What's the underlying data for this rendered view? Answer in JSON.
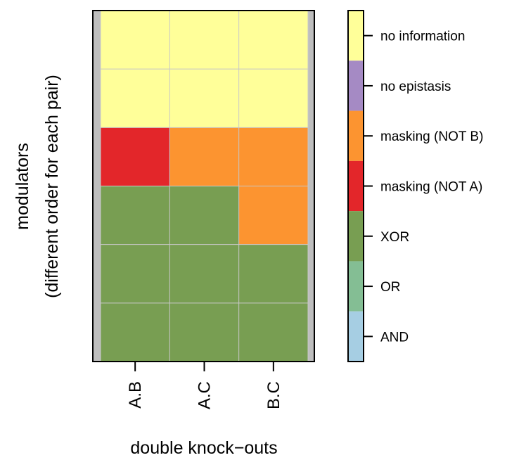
{
  "chart_data": {
    "type": "heatmap",
    "title": "",
    "xlabel": "double knock−outs",
    "ylabel_lines": [
      "modulators",
      "(different order for each pair)"
    ],
    "categories": [
      "A.B",
      "A.C",
      "B.C"
    ],
    "rows_top_to_bottom": [
      [
        "no information",
        "no information",
        "no information"
      ],
      [
        "no information",
        "no information",
        "no information"
      ],
      [
        "masking (NOT A)",
        "masking (NOT B)",
        "masking (NOT B)"
      ],
      [
        "XOR",
        "XOR",
        "masking (NOT B)"
      ],
      [
        "XOR",
        "XOR",
        "XOR"
      ],
      [
        "XOR",
        "XOR",
        "XOR"
      ]
    ],
    "legend": {
      "placement": "right",
      "items_top_to_bottom": [
        {
          "label": "no information",
          "color": "#FFFF99"
        },
        {
          "label": "no epistasis",
          "color": "#A58AC4"
        },
        {
          "label": "masking (NOT B)",
          "color": "#FC9430"
        },
        {
          "label": "masking (NOT A)",
          "color": "#E3262A"
        },
        {
          "label": "XOR",
          "color": "#789E52"
        },
        {
          "label": "OR",
          "color": "#84BE94"
        },
        {
          "label": "AND",
          "color": "#A6CEE3"
        }
      ]
    },
    "grid": true,
    "colors": {
      "background_band": "#BEBEBE",
      "grid_line": "#C8C8C8"
    }
  }
}
